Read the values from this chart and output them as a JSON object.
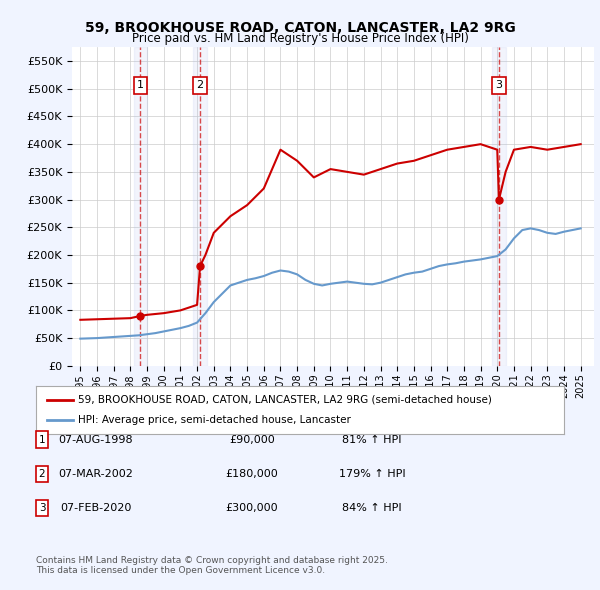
{
  "title": "59, BROOKHOUSE ROAD, CATON, LANCASTER, LA2 9RG",
  "subtitle": "Price paid vs. HM Land Registry's House Price Index (HPI)",
  "property_label": "59, BROOKHOUSE ROAD, CATON, LANCASTER, LA2 9RG (semi-detached house)",
  "hpi_label": "HPI: Average price, semi-detached house, Lancaster",
  "transactions": [
    {
      "num": 1,
      "date": "07-AUG-1998",
      "date_x": 1998.6,
      "price": 90000,
      "pct": "81% ↑ HPI"
    },
    {
      "num": 2,
      "date": "07-MAR-2002",
      "date_x": 2002.18,
      "price": 180000,
      "pct": "179% ↑ HPI"
    },
    {
      "num": 3,
      "date": "07-FEB-2020",
      "date_x": 2020.1,
      "price": 300000,
      "pct": "84% ↑ HPI"
    }
  ],
  "footnote": "Contains HM Land Registry data © Crown copyright and database right 2025.\nThis data is licensed under the Open Government Licence v3.0.",
  "ylim": [
    0,
    575000
  ],
  "yticks": [
    0,
    50000,
    100000,
    150000,
    200000,
    250000,
    300000,
    350000,
    400000,
    450000,
    500000,
    550000
  ],
  "xlim_start": 1994.5,
  "xlim_end": 2025.8,
  "background_color": "#f0f4ff",
  "plot_bg": "#ffffff",
  "red_line_color": "#cc0000",
  "blue_line_color": "#6699cc",
  "grid_color": "#cccccc",
  "vline_color": "#cc0000",
  "box_color": "#cc0000",
  "hpi_years": [
    1995,
    1995.5,
    1996,
    1996.5,
    1997,
    1997.5,
    1998,
    1998.5,
    1999,
    1999.5,
    2000,
    2000.5,
    2001,
    2001.5,
    2002,
    2002.5,
    2003,
    2003.5,
    2004,
    2004.5,
    2005,
    2005.5,
    2006,
    2006.5,
    2007,
    2007.5,
    2008,
    2008.5,
    2009,
    2009.5,
    2010,
    2010.5,
    2011,
    2011.5,
    2012,
    2012.5,
    2013,
    2013.5,
    2014,
    2014.5,
    2015,
    2015.5,
    2016,
    2016.5,
    2017,
    2017.5,
    2018,
    2018.5,
    2019,
    2019.5,
    2020,
    2020.5,
    2021,
    2021.5,
    2022,
    2022.5,
    2023,
    2023.5,
    2024,
    2024.5,
    2025
  ],
  "hpi_values": [
    49000,
    49500,
    50000,
    51000,
    52000,
    53000,
    54000,
    55000,
    57000,
    59000,
    62000,
    65000,
    68000,
    72000,
    78000,
    95000,
    115000,
    130000,
    145000,
    150000,
    155000,
    158000,
    162000,
    168000,
    172000,
    170000,
    165000,
    155000,
    148000,
    145000,
    148000,
    150000,
    152000,
    150000,
    148000,
    147000,
    150000,
    155000,
    160000,
    165000,
    168000,
    170000,
    175000,
    180000,
    183000,
    185000,
    188000,
    190000,
    192000,
    195000,
    198000,
    210000,
    230000,
    245000,
    248000,
    245000,
    240000,
    238000,
    242000,
    245000,
    248000
  ],
  "property_years": [
    1995,
    1996,
    1997,
    1998.0,
    1998.6,
    1999,
    2000,
    2001,
    2002.0,
    2002.18,
    2002.5,
    2003,
    2004,
    2005,
    2006,
    2007,
    2008,
    2009,
    2010,
    2011,
    2012,
    2013,
    2014,
    2015,
    2016,
    2017,
    2018,
    2019,
    2020.0,
    2020.1,
    2020.5,
    2021,
    2022,
    2023,
    2024,
    2025
  ],
  "property_values": [
    83000,
    84000,
    85000,
    86000,
    90000,
    92000,
    95000,
    100000,
    110000,
    180000,
    200000,
    240000,
    270000,
    290000,
    320000,
    390000,
    370000,
    340000,
    355000,
    350000,
    345000,
    355000,
    365000,
    370000,
    380000,
    390000,
    395000,
    400000,
    390000,
    300000,
    350000,
    390000,
    395000,
    390000,
    395000,
    400000
  ]
}
